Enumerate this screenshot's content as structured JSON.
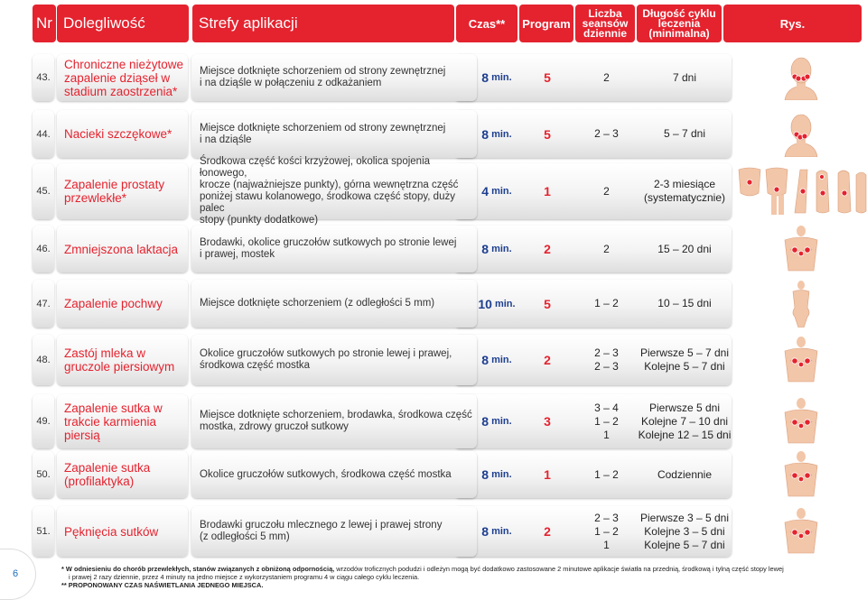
{
  "header": {
    "nr": "Nr",
    "condition": "Dolegliwość",
    "zones": "Strefy aplikacji",
    "time": "Czas**",
    "program": "Program",
    "sessions": [
      "Liczba",
      "seansów",
      "dziennie"
    ],
    "cycle": [
      "Długość cyklu",
      "leczenia",
      "(minimalna)"
    ],
    "figure": "Rys."
  },
  "rows": [
    {
      "nr": "43.",
      "condition": [
        "Chroniczne nieżytowe",
        "zapalenie dziąseł w",
        "stadium zaostrzenia*"
      ],
      "area": [
        "Miejsce dotknięte schorzeniem od strony zewnętrznej",
        "i na dziąśle w połączeniu z odkażaniem"
      ],
      "time": "8",
      "unit": "min.",
      "program": "5",
      "sessions": [
        "2"
      ],
      "cycle": [
        "7 dni"
      ],
      "figure": "head-front-icon"
    },
    {
      "nr": "44.",
      "condition": [
        "Nacieki szczękowe*"
      ],
      "area": [
        "Miejsce dotknięte schorzeniem od strony zewnętrznej",
        "i na dziąśle"
      ],
      "time": "8",
      "unit": "min.",
      "program": "5",
      "sessions": [
        "2 – 3"
      ],
      "cycle": [
        "5 – 7 dni"
      ],
      "figure": "head-shoulders-icon"
    },
    {
      "nr": "45.",
      "condition": [
        "Zapalenie prostaty",
        "przewlekłe*"
      ],
      "area": [
        "Środkowa część kości krzyżowej, okolica spojenia łonowego,",
        "krocze (najważniejsze punkty), górna wewnętrzna część",
        "poniżej stawu kolanowego, środkowa część stopy, duży palec",
        "stopy (punkty dodatkowe)"
      ],
      "time": "4",
      "unit": "min.",
      "program": "1",
      "sessions": [
        "2"
      ],
      "cycle": [
        "2-3 miesiące",
        "(systematycznie)"
      ],
      "figure": "pelvis-legs-feet-icon"
    },
    {
      "nr": "46.",
      "condition": [
        "Zmniejszona laktacja"
      ],
      "area": [
        "Brodawki, okolice gruczołów sutkowych po stronie lewej",
        "i prawej, mostek"
      ],
      "time": "8",
      "unit": "min.",
      "program": "2",
      "sessions": [
        "2"
      ],
      "cycle": [
        "15 – 20 dni"
      ],
      "figure": "female-torso-icon"
    },
    {
      "nr": "47.",
      "condition": [
        "Zapalenie pochwy"
      ],
      "area": [
        "Miejsce dotknięte schorzeniem (z odległości 5 mm)"
      ],
      "time": "10",
      "unit": "min.",
      "program": "5",
      "sessions": [
        "1 – 2"
      ],
      "cycle": [
        "10 – 15 dni"
      ],
      "figure": "female-body-icon"
    },
    {
      "nr": "48.",
      "condition": [
        "Zastój mleka w",
        "gruczole piersiowym"
      ],
      "area": [
        "Okolice gruczołów sutkowych po stronie lewej i prawej,",
        "środkowa część mostka"
      ],
      "time": "8",
      "unit": "min.",
      "program": "2",
      "sessions": [
        "2 – 3",
        "2 – 3"
      ],
      "cycle": [
        "Pierwsze 5 – 7 dni",
        "Kolejne 5 – 7 dni"
      ],
      "figure": "female-chest-icon"
    },
    {
      "nr": "49.",
      "condition": [
        "Zapalenie sutka w",
        "trakcie karmienia",
        "piersią"
      ],
      "area": [
        "Miejsce dotknięte schorzeniem, brodawka, środkowa część",
        "mostka, zdrowy gruczoł sutkowy"
      ],
      "time": "8",
      "unit": "min.",
      "program": "3",
      "sessions": [
        "3 – 4",
        "1 – 2",
        "1"
      ],
      "cycle": [
        "Pierwsze 5 dni",
        "Kolejne 7 – 10 dni",
        "Kolejne 12 – 15 dni"
      ],
      "figure": "female-chest-icon"
    },
    {
      "nr": "50.",
      "condition": [
        "Zapalenie sutka",
        "(profilaktyka)"
      ],
      "area": [
        "Okolice gruczołów sutkowych, środkowa część mostka"
      ],
      "time": "8",
      "unit": "min.",
      "program": "1",
      "sessions": [
        "1 – 2"
      ],
      "cycle": [
        "Codziennie"
      ],
      "figure": "female-chest-icon"
    },
    {
      "nr": "51.",
      "condition": [
        "Pęknięcia sutków"
      ],
      "area": [
        "Brodawki gruczołu mlecznego z lewej i prawej strony",
        "(z odległości 5 mm)"
      ],
      "time": "8",
      "unit": "min.",
      "program": "2",
      "sessions": [
        "2 – 3",
        "1 – 2",
        "1"
      ],
      "cycle": [
        "Pierwsze 3 – 5 dni",
        "Kolejne 3 – 5 dni",
        "Kolejne 5 – 7 dni"
      ],
      "figure": "female-chest-icon"
    }
  ],
  "footnote": {
    "line1_bold": "* W odniesieniu do chorób przewlekłych, stanów związanych z obniżoną odpornością,",
    "line1_rest": " wrzodów troficznych podudzi i odleżyn mogą być dodatkowo zastosowane 2 minutowe aplikacje światła na przednią, środkową i tylną część stopy lewej",
    "line2": "i prawej 2 razy dziennie, przez 4 minuty na jedno miejsce z wykorzystaniem programu 4 w ciągu całego cyklu leczenia.",
    "line3": "** PROPONOWANY CZAS NAŚWIETLANIA JEDNEGO MIEJSCA."
  },
  "page_number": "6",
  "colors": {
    "accent": "#e4232f",
    "time_blue": "#1e3f8f"
  }
}
